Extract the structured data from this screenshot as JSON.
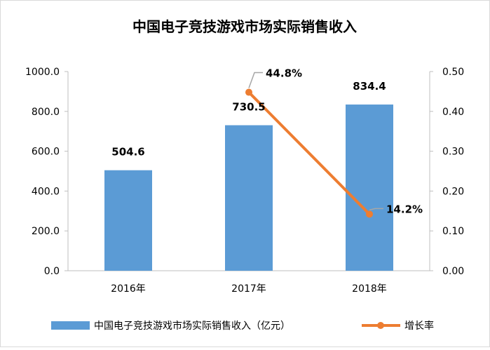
{
  "chart_data": {
    "type": "bar+line",
    "title": "中国电子竞技游戏市场实际销售收入",
    "categories": [
      "2016年",
      "2017年",
      "2018年"
    ],
    "series": [
      {
        "name": "中国电子竞技游戏市场实际销售收入（亿元）",
        "type": "bar",
        "axis": "left",
        "values": [
          504.6,
          730.5,
          834.4
        ],
        "labels": [
          "504.6",
          "730.5",
          "834.4"
        ],
        "color": "#5b9bd5"
      },
      {
        "name": "增长率",
        "type": "line",
        "axis": "right",
        "values": [
          null,
          0.448,
          0.142
        ],
        "labels": [
          "",
          "44.8%",
          "14.2%"
        ],
        "color": "#ed7d31"
      }
    ],
    "y_left": {
      "min": 0,
      "max": 1000,
      "step": 200,
      "ticks": [
        "0.0",
        "200.0",
        "400.0",
        "600.0",
        "800.0",
        "1000.0"
      ]
    },
    "y_right": {
      "min": 0,
      "max": 0.5,
      "step": 0.1,
      "ticks": [
        "0.00",
        "0.10",
        "0.20",
        "0.30",
        "0.40",
        "0.50"
      ]
    },
    "legend_position": "bottom"
  }
}
